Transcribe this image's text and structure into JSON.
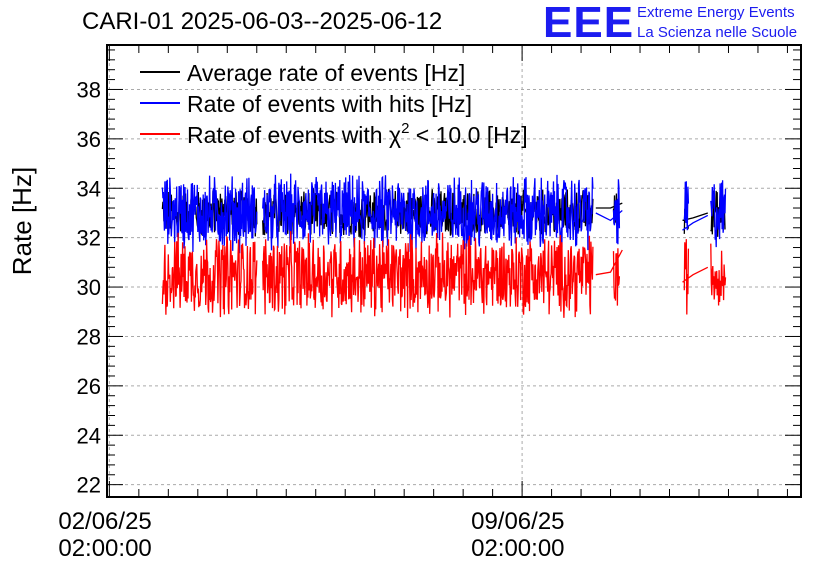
{
  "header": {
    "title": "CARI-01 2025-06-03--2025-06-12",
    "logo_text": "EEE",
    "logo_line1": "Extreme Energy Events",
    "logo_line2": "La Scienza nelle Scuole"
  },
  "colors": {
    "average": "#000000",
    "hits": "#0000ff",
    "chi2": "#ff0000",
    "logo": "#1c1cf0"
  },
  "chart_data": {
    "type": "line",
    "title": "CARI-01 2025-06-03--2025-06-12",
    "ylabel": "Rate [Hz]",
    "xlabel": "",
    "x_ticks": [
      {
        "date": "02/06/25",
        "time": "02:00:00",
        "day": 0
      },
      {
        "date": "09/06/25",
        "time": "02:00:00",
        "day": 7
      }
    ],
    "xlim_days": [
      -0.04,
      11.73
    ],
    "ylim": [
      21.5,
      39.8
    ],
    "y_ticks": [
      22,
      24,
      26,
      28,
      30,
      32,
      34,
      36,
      38
    ],
    "grid": true,
    "legend_position": "top-left",
    "legend": [
      {
        "label": "Average rate of events [Hz]",
        "color": "#000000"
      },
      {
        "label": "Rate of events with hits [Hz]",
        "color": "#0000ff"
      },
      {
        "label_pre": "Rate of events with χ",
        "label_sup": "2",
        "label_post": " < 10.0 [Hz]",
        "color": "#ff0000"
      }
    ],
    "segments_days": [
      [
        0.9,
        2.5
      ],
      [
        2.6,
        8.2
      ],
      [
        8.55,
        8.65
      ],
      [
        9.75,
        9.82
      ],
      [
        10.2,
        10.45
      ]
    ],
    "series": [
      {
        "name": "Average rate of events [Hz]",
        "mean": 33.0,
        "spread": 0.8,
        "color": "#000000",
        "gap_points": [
          [
            8.25,
            33.2
          ],
          [
            8.5,
            33.2
          ],
          [
            8.7,
            33.4
          ],
          [
            9.72,
            32.7
          ],
          [
            9.9,
            32.8
          ],
          [
            10.15,
            33.0
          ]
        ]
      },
      {
        "name": "Rate of events with hits [Hz]",
        "mean": 33.0,
        "spread": 1.3,
        "color": "#0000ff",
        "gap_points": [
          [
            8.25,
            33.0
          ],
          [
            8.5,
            32.7
          ],
          [
            8.7,
            33.1
          ],
          [
            9.72,
            32.3
          ],
          [
            9.9,
            32.6
          ],
          [
            10.15,
            32.9
          ]
        ]
      },
      {
        "name": "Rate of events with χ2 < 10.0 [Hz]",
        "mean": 30.5,
        "spread": 1.4,
        "color": "#ff0000",
        "gap_points": [
          [
            8.25,
            30.5
          ],
          [
            8.5,
            30.6
          ],
          [
            8.7,
            31.5
          ],
          [
            9.72,
            30.2
          ],
          [
            9.9,
            30.5
          ],
          [
            10.15,
            30.8
          ]
        ]
      }
    ]
  }
}
